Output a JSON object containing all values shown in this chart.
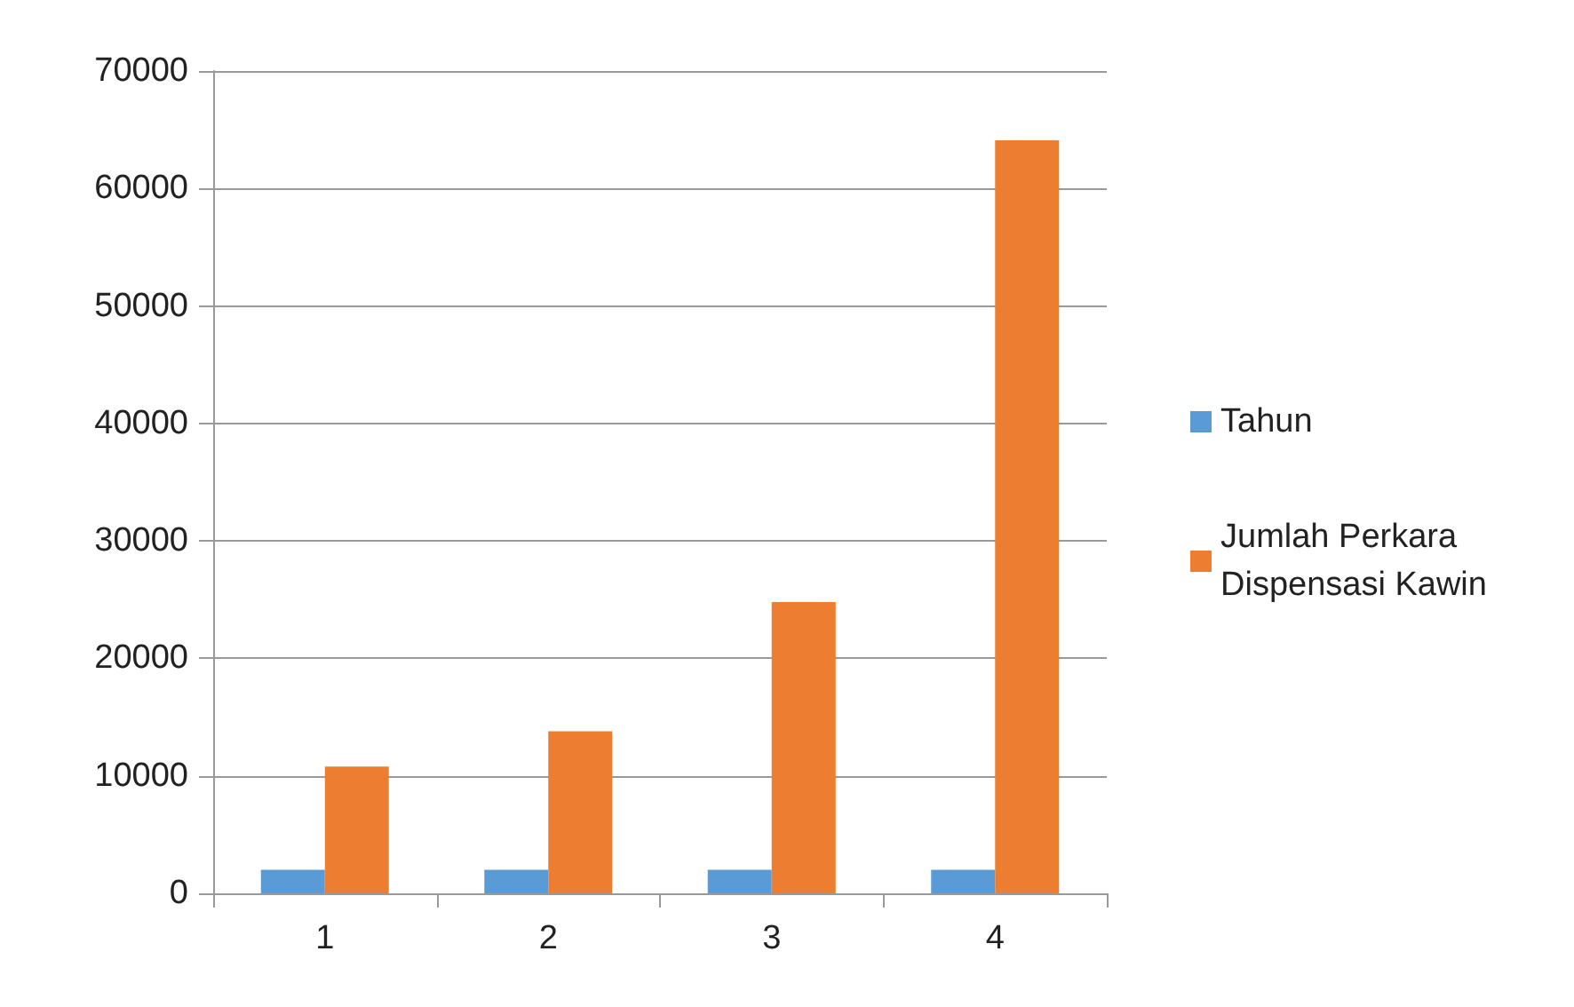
{
  "chart_data": {
    "type": "bar",
    "categories": [
      "1",
      "2",
      "3",
      "4"
    ],
    "series": [
      {
        "name": "Tahun",
        "color": "#5b9bd5",
        "values": [
          2000,
          2000,
          2000,
          2000
        ]
      },
      {
        "name": "Jumlah Perkara Dispensasi Kawin",
        "color": "#ed7d31",
        "values": [
          10800,
          13800,
          24800,
          64100
        ]
      }
    ],
    "ylim": [
      0,
      70000
    ],
    "yticks": [
      0,
      10000,
      20000,
      30000,
      40000,
      50000,
      60000,
      70000
    ],
    "grid": "y",
    "legend": "right"
  }
}
